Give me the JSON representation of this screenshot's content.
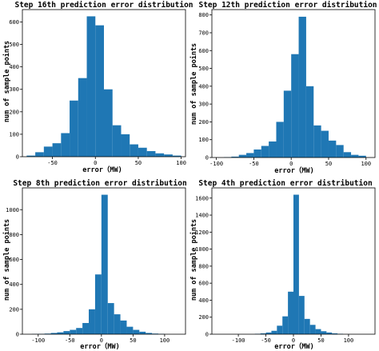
{
  "chart_data": [
    {
      "type": "bar",
      "title": "Step 16th prediction error distribution",
      "xlabel": "error（MW)",
      "ylabel": "num of sample points",
      "bin_edges": [
        -80,
        -70,
        -60,
        -50,
        -40,
        -30,
        -20,
        -10,
        0,
        10,
        20,
        30,
        40,
        50,
        60,
        70,
        80,
        90,
        100
      ],
      "values": [
        5,
        20,
        45,
        60,
        105,
        250,
        350,
        625,
        585,
        300,
        140,
        100,
        55,
        40,
        25,
        15,
        10,
        5
      ],
      "xlim": [
        -85,
        105
      ],
      "ylim": [
        0,
        655
      ],
      "xticks": [
        -50,
        0,
        50,
        100
      ],
      "yticks": [
        0,
        100,
        200,
        300,
        400,
        500,
        600
      ]
    },
    {
      "type": "bar",
      "title": "Step 12th prediction error distribution",
      "xlabel": "error（MW)",
      "ylabel": "num of sample points",
      "bin_edges": [
        -90,
        -80,
        -70,
        -60,
        -50,
        -40,
        -30,
        -20,
        -10,
        0,
        10,
        20,
        30,
        40,
        50,
        60,
        70,
        80,
        90,
        100
      ],
      "values": [
        2,
        5,
        15,
        25,
        45,
        65,
        90,
        200,
        375,
        580,
        790,
        400,
        180,
        150,
        95,
        70,
        30,
        15,
        10
      ],
      "xlim": [
        -106,
        112
      ],
      "ylim": [
        0,
        830
      ],
      "xticks": [
        -100,
        -50,
        0,
        50,
        100
      ],
      "yticks": [
        0,
        100,
        200,
        300,
        400,
        500,
        600,
        700,
        800
      ]
    },
    {
      "type": "bar",
      "title": "Step 8th prediction error distribution",
      "xlabel": "error（MW)",
      "ylabel": "num of sample points",
      "bin_edges": [
        -110,
        -100,
        -90,
        -80,
        -70,
        -60,
        -50,
        -40,
        -30,
        -20,
        -10,
        0,
        10,
        20,
        30,
        40,
        50,
        60,
        70,
        80,
        90,
        100
      ],
      "values": [
        2,
        3,
        5,
        10,
        15,
        25,
        35,
        50,
        90,
        200,
        480,
        1120,
        250,
        160,
        110,
        60,
        35,
        20,
        10,
        5,
        3
      ],
      "xlim": [
        -125,
        133
      ],
      "ylim": [
        0,
        1175
      ],
      "xticks": [
        -100,
        -50,
        0,
        50,
        100
      ],
      "yticks": [
        0,
        200,
        400,
        600,
        800,
        1000
      ]
    },
    {
      "type": "bar",
      "title": "Step 4th prediction error distribution",
      "xlabel": "error（MW)",
      "ylabel": "num of sample points",
      "bin_edges": [
        -70,
        -60,
        -50,
        -40,
        -30,
        -20,
        -10,
        0,
        10,
        20,
        30,
        40,
        50,
        60,
        70,
        80,
        90
      ],
      "values": [
        5,
        10,
        20,
        40,
        100,
        210,
        500,
        1640,
        450,
        180,
        110,
        60,
        35,
        20,
        10,
        5
      ],
      "xlim": [
        -148,
        148
      ],
      "ylim": [
        0,
        1720
      ],
      "xticks": [
        -100,
        -50,
        0,
        50,
        100
      ],
      "yticks": [
        0,
        200,
        400,
        600,
        800,
        1000,
        1200,
        1400,
        1600
      ]
    }
  ]
}
